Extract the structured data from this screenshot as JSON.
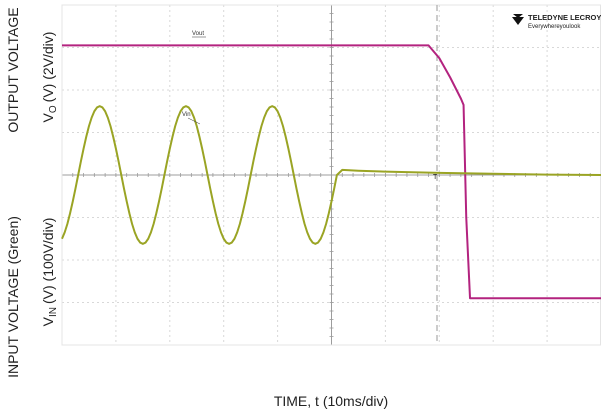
{
  "chart_data": {
    "type": "line",
    "xlabel": "TIME, t (10ms/div)",
    "ylabel": {
      "line1": "OUTPUT VOLTAGE",
      "symbol": "V",
      "subscript": "O",
      "unit": "(V) (2V/div)"
    },
    "y2label": {
      "line1": "INPUT VOLTAGE (Green)",
      "symbol": "V",
      "subscript": "IN",
      "unit": "(V) (100V/div)"
    },
    "annotations": [
      "Vout",
      "Vin"
    ],
    "brand": {
      "name": "TELEDYNE LECROY",
      "tagline": "Everywhereyoulook"
    },
    "xlim": [
      0,
      100
    ],
    "ylim": [
      -8,
      8
    ],
    "y2lim": [
      -400,
      400
    ],
    "grid": true,
    "series": [
      {
        "name": "Vout",
        "color": "#b3237f",
        "x": [
          0,
          10,
          20,
          30,
          40,
          50,
          60,
          68,
          70,
          72,
          74,
          74.5,
          75,
          75.7,
          80,
          90,
          100
        ],
        "values": [
          6.1,
          6.1,
          6.1,
          6.1,
          6.1,
          6.1,
          6.1,
          6.1,
          5.5,
          4.6,
          3.6,
          3.3,
          -2,
          -5.8,
          -5.8,
          -5.8,
          -5.8
        ]
      },
      {
        "name": "Vin",
        "color": "#9aa424",
        "axis": "y2",
        "x": [
          0,
          0.5,
          1,
          1.5,
          2,
          2.5,
          3,
          3.5,
          4,
          4.5,
          5,
          5.5,
          6,
          6.5,
          7,
          7.5,
          8,
          8.5,
          9,
          9.5,
          10,
          10.5,
          11,
          11.5,
          12,
          12.5,
          13,
          13.5,
          14,
          14.5,
          15,
          15.5,
          16,
          16.5,
          17,
          17.5,
          18,
          18.5,
          19,
          19.5,
          20,
          20.5,
          21,
          21.5,
          22,
          22.5,
          23,
          23.5,
          24,
          24.5,
          25,
          25.5,
          26,
          26.5,
          27,
          27.5,
          28,
          28.5,
          29,
          29.5,
          30,
          30.5,
          31,
          31.5,
          32,
          32.5,
          33,
          33.5,
          34,
          34.5,
          35,
          35.5,
          36,
          36.5,
          37,
          37.5,
          38,
          38.5,
          39,
          39.5,
          40,
          40.5,
          41,
          41.5,
          42,
          42.5,
          43,
          43.5,
          44,
          44.5,
          45,
          45.5,
          46,
          46.5,
          47,
          47.5,
          48,
          48.5,
          49,
          49.5,
          50,
          50.5,
          51,
          52,
          55,
          60,
          70,
          80,
          90,
          100
        ],
        "values": [
          -150,
          -135,
          -115,
          -90,
          -62,
          -32,
          0,
          32,
          62,
          90,
          115,
          135,
          150,
          159,
          162,
          159,
          150,
          135,
          115,
          90,
          62,
          32,
          0,
          -32,
          -62,
          -90,
          -115,
          -135,
          -150,
          -159,
          -162,
          -159,
          -150,
          -135,
          -115,
          -90,
          -62,
          -32,
          0,
          32,
          62,
          90,
          115,
          135,
          150,
          159,
          162,
          159,
          150,
          135,
          115,
          90,
          62,
          32,
          0,
          -32,
          -62,
          -90,
          -115,
          -135,
          -150,
          -159,
          -162,
          -159,
          -150,
          -135,
          -115,
          -90,
          -62,
          -32,
          0,
          32,
          62,
          90,
          115,
          135,
          150,
          159,
          162,
          159,
          150,
          135,
          115,
          90,
          62,
          32,
          0,
          -32,
          -62,
          -90,
          -115,
          -135,
          -150,
          -159,
          -162,
          -159,
          -150,
          -135,
          -115,
          -90,
          -62,
          -32,
          0,
          12,
          10,
          8,
          5,
          3,
          1,
          0
        ]
      }
    ]
  }
}
